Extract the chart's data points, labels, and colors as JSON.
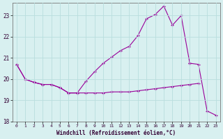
{
  "xlabel": "Windchill (Refroidissement éolien,°C)",
  "bg_color": "#d8f0f0",
  "line_color": "#990099",
  "grid_color": "#b8dede",
  "xlim": [
    -0.5,
    23.5
  ],
  "ylim": [
    18.0,
    23.6
  ],
  "yticks": [
    18,
    19,
    20,
    21,
    22,
    23
  ],
  "xticks": [
    0,
    1,
    2,
    3,
    4,
    5,
    6,
    7,
    8,
    9,
    10,
    11,
    12,
    13,
    14,
    15,
    16,
    17,
    18,
    19,
    20,
    21,
    22,
    23
  ],
  "line_top_x": [
    0,
    1,
    2,
    3,
    4,
    5,
    6,
    7,
    8,
    9,
    10,
    11,
    12,
    13,
    14,
    15,
    16,
    17,
    18,
    19,
    20,
    21,
    22,
    23
  ],
  "line_top_y": [
    20.7,
    20.0,
    19.85,
    19.75,
    19.75,
    19.6,
    19.35,
    19.35,
    19.9,
    20.35,
    20.75,
    21.05,
    21.35,
    21.55,
    22.05,
    22.85,
    23.05,
    23.45,
    22.55,
    23.0,
    20.75,
    null,
    null,
    null
  ],
  "line_mid_x": [
    0,
    1,
    2,
    3,
    4,
    5,
    6,
    7,
    8,
    9,
    10,
    11,
    12,
    13,
    14,
    15,
    16,
    17,
    18,
    19,
    20,
    21,
    22,
    23
  ],
  "line_mid_y": [
    20.7,
    20.0,
    19.85,
    19.75,
    19.75,
    19.6,
    19.35,
    19.35,
    19.35,
    19.35,
    19.35,
    19.4,
    19.4,
    19.4,
    19.45,
    19.5,
    19.55,
    19.6,
    19.65,
    19.7,
    19.75,
    19.8,
    null,
    null
  ],
  "line_bot_x": [
    0,
    1,
    2,
    3,
    4,
    5,
    6,
    7,
    8,
    9,
    10,
    11,
    12,
    13,
    14,
    15,
    16,
    17,
    18,
    19,
    20,
    21,
    22,
    23
  ],
  "line_bot_y": [
    null,
    null,
    null,
    null,
    null,
    null,
    null,
    null,
    null,
    null,
    null,
    null,
    null,
    null,
    null,
    null,
    null,
    null,
    null,
    null,
    20.75,
    20.7,
    18.5,
    18.3
  ]
}
